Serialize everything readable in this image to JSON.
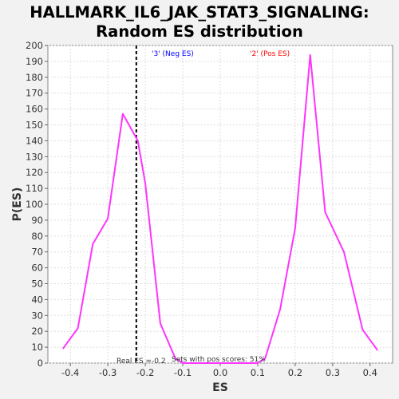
{
  "chart_data": {
    "type": "line",
    "title_line1": "HALLMARK_IL6_JAK_STAT3_SIGNALING:",
    "title_line2": "Random ES distribution",
    "xlabel": "ES",
    "ylabel": "P(ES)",
    "xlim": [
      -0.46,
      0.46
    ],
    "ylim": [
      0,
      200
    ],
    "xticks": [
      -0.4,
      -0.3,
      -0.2,
      -0.1,
      0.0,
      0.1,
      0.2,
      0.3,
      0.4
    ],
    "xtick_labels": [
      "-0.4",
      "-0.3",
      "-0.2",
      "-0.1",
      "0.0",
      "0.1",
      "0.2",
      "0.3",
      "0.4"
    ],
    "yticks": [
      0,
      10,
      20,
      30,
      40,
      50,
      60,
      70,
      80,
      90,
      100,
      110,
      120,
      130,
      140,
      150,
      160,
      170,
      180,
      190,
      200
    ],
    "ytick_labels": [
      "0",
      "10",
      "20",
      "30",
      "40",
      "50",
      "60",
      "70",
      "80",
      "90",
      "100",
      "110",
      "120",
      "130",
      "140",
      "150",
      "160",
      "170",
      "180",
      "190",
      "200"
    ],
    "grid": true,
    "line_color": "#ff33ff",
    "real_es_value": -0.224,
    "series": [
      {
        "x": [
          -0.42,
          -0.38,
          -0.34,
          -0.3,
          -0.26,
          -0.22,
          -0.2,
          -0.16,
          -0.12,
          -0.1,
          -0.05,
          0.0,
          0.05,
          0.1,
          0.12,
          0.16,
          0.2,
          0.24,
          0.28,
          0.33,
          0.38,
          0.42
        ],
        "y": [
          9,
          22,
          75,
          91,
          157,
          140,
          113,
          25,
          3,
          0,
          0,
          0,
          0,
          0,
          3,
          34,
          85,
          194,
          95,
          70,
          21,
          8
        ]
      }
    ],
    "annotations": {
      "neg_label": "'3' (Neg ES)",
      "neg_color": "#0000ff",
      "pos_label": "'2' (Pos ES)",
      "pos_color": "#ff0000",
      "real_es_label": "Real ES =-0.2",
      "sets_label": "Sets with pos scores: 51%"
    }
  }
}
